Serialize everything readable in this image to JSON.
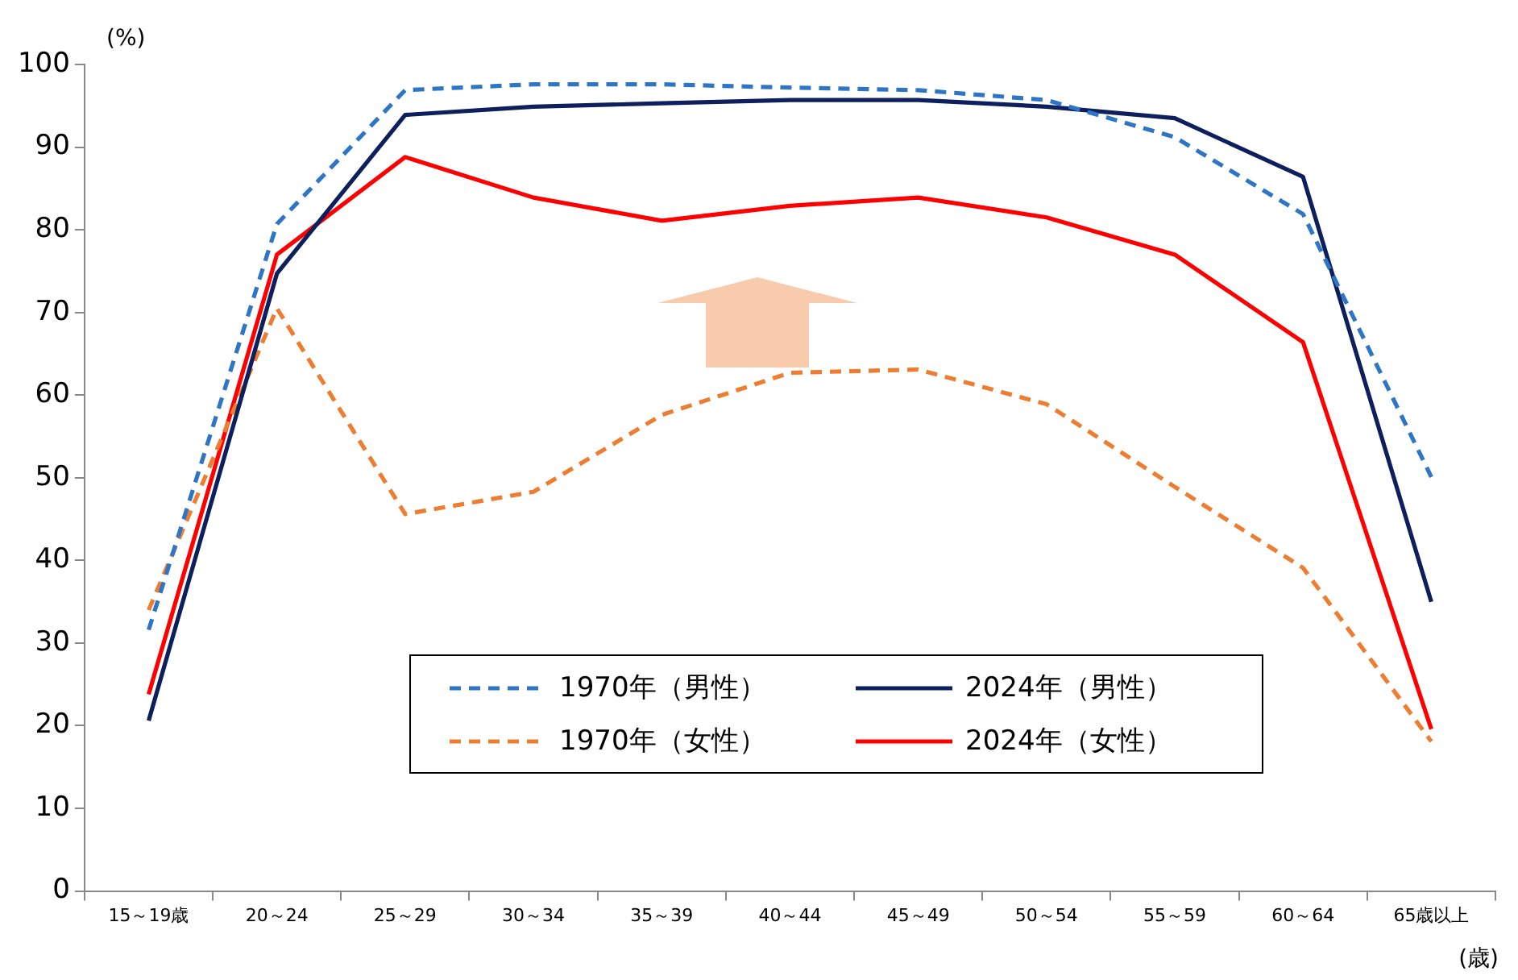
{
  "chart_data": {
    "type": "line",
    "xlabel": "(歳)",
    "ylabel": "(%)",
    "categories": [
      "15～19歳",
      "20～24",
      "25～29",
      "30～34",
      "35～39",
      "40～44",
      "45～49",
      "50～54",
      "55～59",
      "60～64",
      "65歳以上"
    ],
    "series": [
      {
        "name": "1970年（男性）",
        "color": "#2e75c5",
        "line_style": "dashed",
        "values": [
          31.6,
          80.7,
          96.9,
          97.6,
          97.6,
          97.2,
          96.9,
          95.7,
          91.2,
          81.9,
          50.1
        ]
      },
      {
        "name": "2024年（男性）",
        "color": "#0d1f5c",
        "line_style": "solid",
        "values": [
          20.6,
          74.7,
          93.9,
          94.9,
          95.3,
          95.7,
          95.7,
          94.9,
          93.5,
          86.4,
          35.0
        ]
      },
      {
        "name": "1970年（女性）",
        "color": "#ed7d31",
        "line_style": "dashed",
        "values": [
          34.0,
          70.5,
          45.6,
          48.3,
          57.6,
          62.7,
          63.1,
          58.9,
          48.9,
          39.1,
          18.1
        ]
      },
      {
        "name": "2024年（女性）",
        "color": "#ff0000",
        "line_style": "solid",
        "values": [
          23.8,
          77.0,
          88.8,
          83.9,
          81.1,
          82.9,
          83.9,
          81.5,
          77.0,
          66.4,
          19.6
        ]
      }
    ],
    "ylim": [
      0,
      100
    ],
    "yticks": [
      0,
      10,
      20,
      30,
      40,
      50,
      60,
      70,
      80,
      90,
      100
    ],
    "grid": false,
    "legend": "bottom",
    "marker": "none"
  }
}
